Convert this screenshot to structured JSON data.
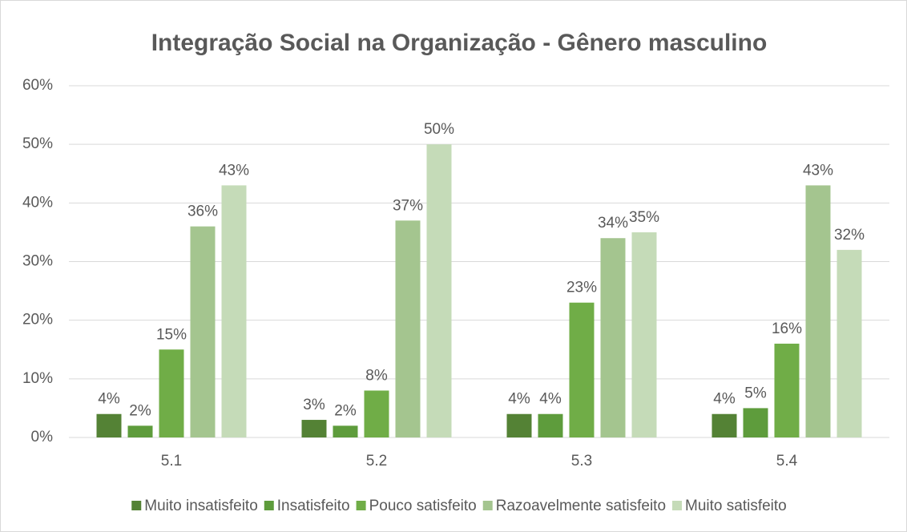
{
  "chart_data": {
    "type": "bar",
    "title": "Integração Social na Organização - Gênero masculino",
    "categories": [
      "5.1",
      "5.2",
      "5.3",
      "5.4"
    ],
    "series": [
      {
        "name": "Muito insatisfeito",
        "color": "#548235",
        "values": [
          4,
          3,
          4,
          4
        ],
        "value_labels": [
          "4%",
          "3%",
          "4%",
          "4%"
        ]
      },
      {
        "name": "Insatisfeito",
        "color": "#5e9c3c",
        "values": [
          2,
          2,
          4,
          5
        ],
        "value_labels": [
          "2%",
          "2%",
          "4%",
          "5%"
        ]
      },
      {
        "name": "Pouco satisfeito",
        "color": "#70ad47",
        "values": [
          15,
          8,
          23,
          16
        ],
        "value_labels": [
          "15%",
          "8%",
          "23%",
          "16%"
        ]
      },
      {
        "name": "Razoavelmente satisfeito",
        "color": "#a4c58f",
        "values": [
          36,
          37,
          34,
          43
        ],
        "value_labels": [
          "36%",
          "37%",
          "34%",
          "43%"
        ]
      },
      {
        "name": "Muito satisfeito",
        "color": "#c5dbb8",
        "values": [
          43,
          50,
          35,
          32
        ],
        "value_labels": [
          "43%",
          "50%",
          "35%",
          "32%"
        ]
      }
    ],
    "ylim": [
      0,
      60
    ],
    "yticks": [
      {
        "value": 0,
        "label": "0%"
      },
      {
        "value": 10,
        "label": "10%"
      },
      {
        "value": 20,
        "label": "20%"
      },
      {
        "value": 30,
        "label": "30%"
      },
      {
        "value": 40,
        "label": "40%"
      },
      {
        "value": 50,
        "label": "50%"
      },
      {
        "value": 60,
        "label": "60%"
      }
    ],
    "grid": true,
    "legend": "bottom"
  }
}
